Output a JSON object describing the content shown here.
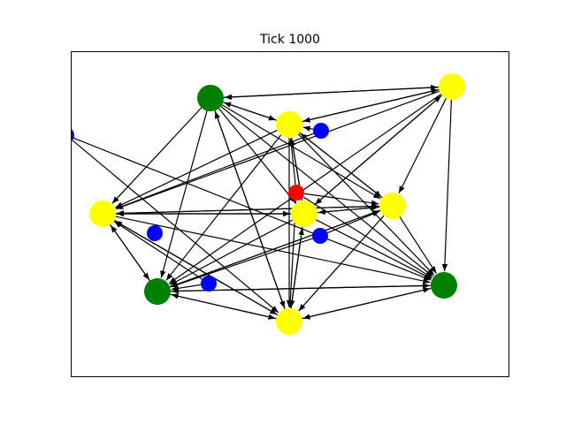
{
  "title": "Tick 1000",
  "colors": {
    "frame": "#000000",
    "edge": "#000000",
    "yellow": "#ffff00",
    "green": "#008000",
    "blue": "#0000ff",
    "red": "#ff0000"
  },
  "nodes": [
    {
      "id": "g1",
      "color": "green",
      "size": "large"
    },
    {
      "id": "y1",
      "color": "yellow",
      "size": "large"
    },
    {
      "id": "y2",
      "color": "yellow",
      "size": "large"
    },
    {
      "id": "b1",
      "color": "blue",
      "size": "small"
    },
    {
      "id": "r1",
      "color": "red",
      "size": "small"
    },
    {
      "id": "y3",
      "color": "yellow",
      "size": "large"
    },
    {
      "id": "y4",
      "color": "yellow",
      "size": "large"
    },
    {
      "id": "y5",
      "color": "yellow",
      "size": "large"
    },
    {
      "id": "b2",
      "color": "blue",
      "size": "small"
    },
    {
      "id": "b3",
      "color": "blue",
      "size": "small"
    },
    {
      "id": "g2",
      "color": "green",
      "size": "large"
    },
    {
      "id": "b4",
      "color": "blue",
      "size": "small"
    },
    {
      "id": "g3",
      "color": "green",
      "size": "large"
    },
    {
      "id": "y6",
      "color": "yellow",
      "size": "large"
    },
    {
      "id": "b5",
      "color": "blue",
      "size": "small"
    }
  ],
  "edges": [
    [
      "g1",
      "y1"
    ],
    [
      "y1",
      "g1"
    ],
    [
      "g1",
      "y2"
    ],
    [
      "y2",
      "g1"
    ],
    [
      "g1",
      "y3"
    ],
    [
      "g1",
      "y4"
    ],
    [
      "g1",
      "y5"
    ],
    [
      "g1",
      "y6"
    ],
    [
      "g1",
      "g2"
    ],
    [
      "g1",
      "g3"
    ],
    [
      "y1",
      "y2"
    ],
    [
      "y2",
      "y1"
    ],
    [
      "y1",
      "y3"
    ],
    [
      "y3",
      "y1"
    ],
    [
      "y1",
      "y4"
    ],
    [
      "y1",
      "y5"
    ],
    [
      "y1",
      "g2"
    ],
    [
      "y1",
      "g3"
    ],
    [
      "y2",
      "y3"
    ],
    [
      "y3",
      "y2"
    ],
    [
      "y2",
      "y4"
    ],
    [
      "y4",
      "y2"
    ],
    [
      "y2",
      "y5"
    ],
    [
      "y2",
      "g2"
    ],
    [
      "y2",
      "g3"
    ],
    [
      "y2",
      "y6"
    ],
    [
      "b1",
      "y2"
    ],
    [
      "b1",
      "y5"
    ],
    [
      "r1",
      "y2"
    ],
    [
      "r1",
      "y4"
    ],
    [
      "r1",
      "y3"
    ],
    [
      "r1",
      "g3"
    ],
    [
      "r1",
      "y6"
    ],
    [
      "y3",
      "y4"
    ],
    [
      "y4",
      "y3"
    ],
    [
      "y3",
      "y5"
    ],
    [
      "y5",
      "y3"
    ],
    [
      "y3",
      "g2"
    ],
    [
      "y3",
      "g3"
    ],
    [
      "y3",
      "y6"
    ],
    [
      "y6",
      "y3"
    ],
    [
      "y4",
      "y5"
    ],
    [
      "y5",
      "y4"
    ],
    [
      "y4",
      "g2"
    ],
    [
      "g2",
      "y4"
    ],
    [
      "y4",
      "g3"
    ],
    [
      "y4",
      "y6"
    ],
    [
      "b3",
      "y4"
    ],
    [
      "b3",
      "g2"
    ],
    [
      "y5",
      "g2"
    ],
    [
      "g2",
      "y5"
    ],
    [
      "y5",
      "g3"
    ],
    [
      "y5",
      "y6"
    ],
    [
      "y6",
      "y5"
    ],
    [
      "b4",
      "g2"
    ],
    [
      "b4",
      "y5"
    ],
    [
      "g2",
      "y6"
    ],
    [
      "y6",
      "g2"
    ],
    [
      "g2",
      "g3"
    ],
    [
      "g3",
      "g2"
    ],
    [
      "b5",
      "g3"
    ],
    [
      "b5",
      "y6"
    ],
    [
      "g3",
      "y6"
    ],
    [
      "y6",
      "g3"
    ],
    [
      "y6",
      "g1"
    ]
  ]
}
